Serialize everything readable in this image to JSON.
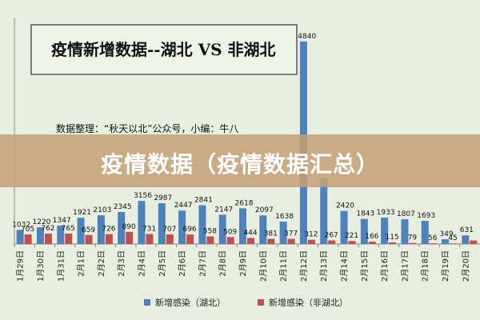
{
  "banner": {
    "text": "疫情数据（疫情数据汇总）"
  },
  "chart_data": {
    "type": "bar",
    "title": "疫情新增数据--湖北 VS 非湖北",
    "source_note": "数据整理：“秋天以北”公众号，小编：牛八",
    "categories": [
      "1月29日",
      "1月30日",
      "1月31日",
      "2月1日",
      "2月2日",
      "2月3日",
      "2月4日",
      "2月5日",
      "2月6日",
      "2月7日",
      "2月8日",
      "2月9日",
      "2月10日",
      "2月11日",
      "2月12日",
      "2月13日",
      "2月14日",
      "2月15日",
      "2月16日",
      "2月17日",
      "2月18日",
      "2月19日",
      "2月20日"
    ],
    "series": [
      {
        "name": "新增感染（湖北）",
        "color": "#4f81bd",
        "values": [
          1032,
          1220,
          1347,
          1921,
          2103,
          2345,
          3156,
          2987,
          2447,
          2841,
          2147,
          2618,
          2097,
          1638,
          14840,
          4823,
          2420,
          1843,
          1933,
          1807,
          1693,
          349,
          631
        ]
      },
      {
        "name": "新增感染（非湖北）",
        "color": "#c0504d",
        "values": [
          705,
          762,
          765,
          659,
          726,
          890,
          731,
          707,
          696,
          558,
          509,
          444,
          381,
          377,
          312,
          267,
          221,
          166,
          115,
          79,
          56,
          45,
          258
        ]
      }
    ],
    "value_labels": {
      "series1": [
        "1032",
        "1220",
        "1347",
        "1921",
        "2103",
        "2345",
        "3156",
        "2987",
        "2447",
        "2841",
        "2147",
        "2618",
        "2097",
        "1638",
        "14840",
        "",
        "2420",
        "1843",
        "1933",
        "1807",
        "1693",
        "349",
        "631"
      ],
      "series2": [
        "705",
        "762",
        "765",
        "659",
        "726",
        "890",
        "731",
        "707",
        "696",
        "558",
        "509",
        "444",
        "381",
        "377",
        "312",
        "267",
        "221",
        "166",
        "115",
        "79",
        "56",
        "45",
        ""
      ]
    },
    "ylim": [
      0,
      16000
    ],
    "grid": false,
    "legend_position": "bottom"
  }
}
